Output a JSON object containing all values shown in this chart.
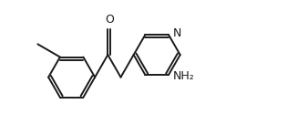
{
  "bg_color": "#ffffff",
  "line_color": "#1a1a1a",
  "line_width": 1.4,
  "font_size_atom": 9,
  "atoms": {
    "O_label": "O",
    "N_label": "N",
    "NH2_label": "NH₂"
  },
  "xlim": [
    0,
    9.5
  ],
  "ylim": [
    0.2,
    4.2
  ]
}
